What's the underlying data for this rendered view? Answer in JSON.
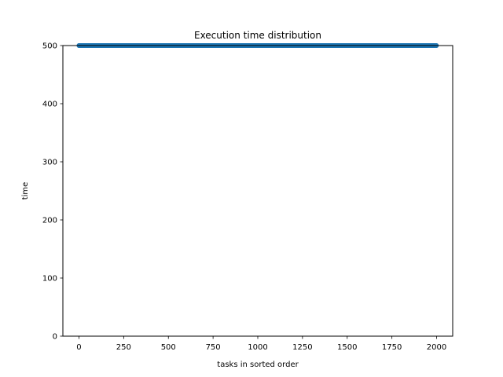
{
  "chart_data": {
    "type": "scatter",
    "title": "Execution time distribution",
    "xlabel": "tasks in sorted order",
    "ylabel": "time",
    "xlim": [
      -90,
      2090
    ],
    "ylim": [
      0,
      500
    ],
    "xticks": [
      0,
      250,
      500,
      750,
      1000,
      1250,
      1500,
      1750,
      2000
    ],
    "yticks": [
      0,
      100,
      200,
      300,
      400,
      500
    ],
    "grid": false,
    "series": [
      {
        "color": "#1f77b4",
        "x_start": 0,
        "x_end": 1999,
        "x_step": 1,
        "y": 500
      }
    ]
  }
}
